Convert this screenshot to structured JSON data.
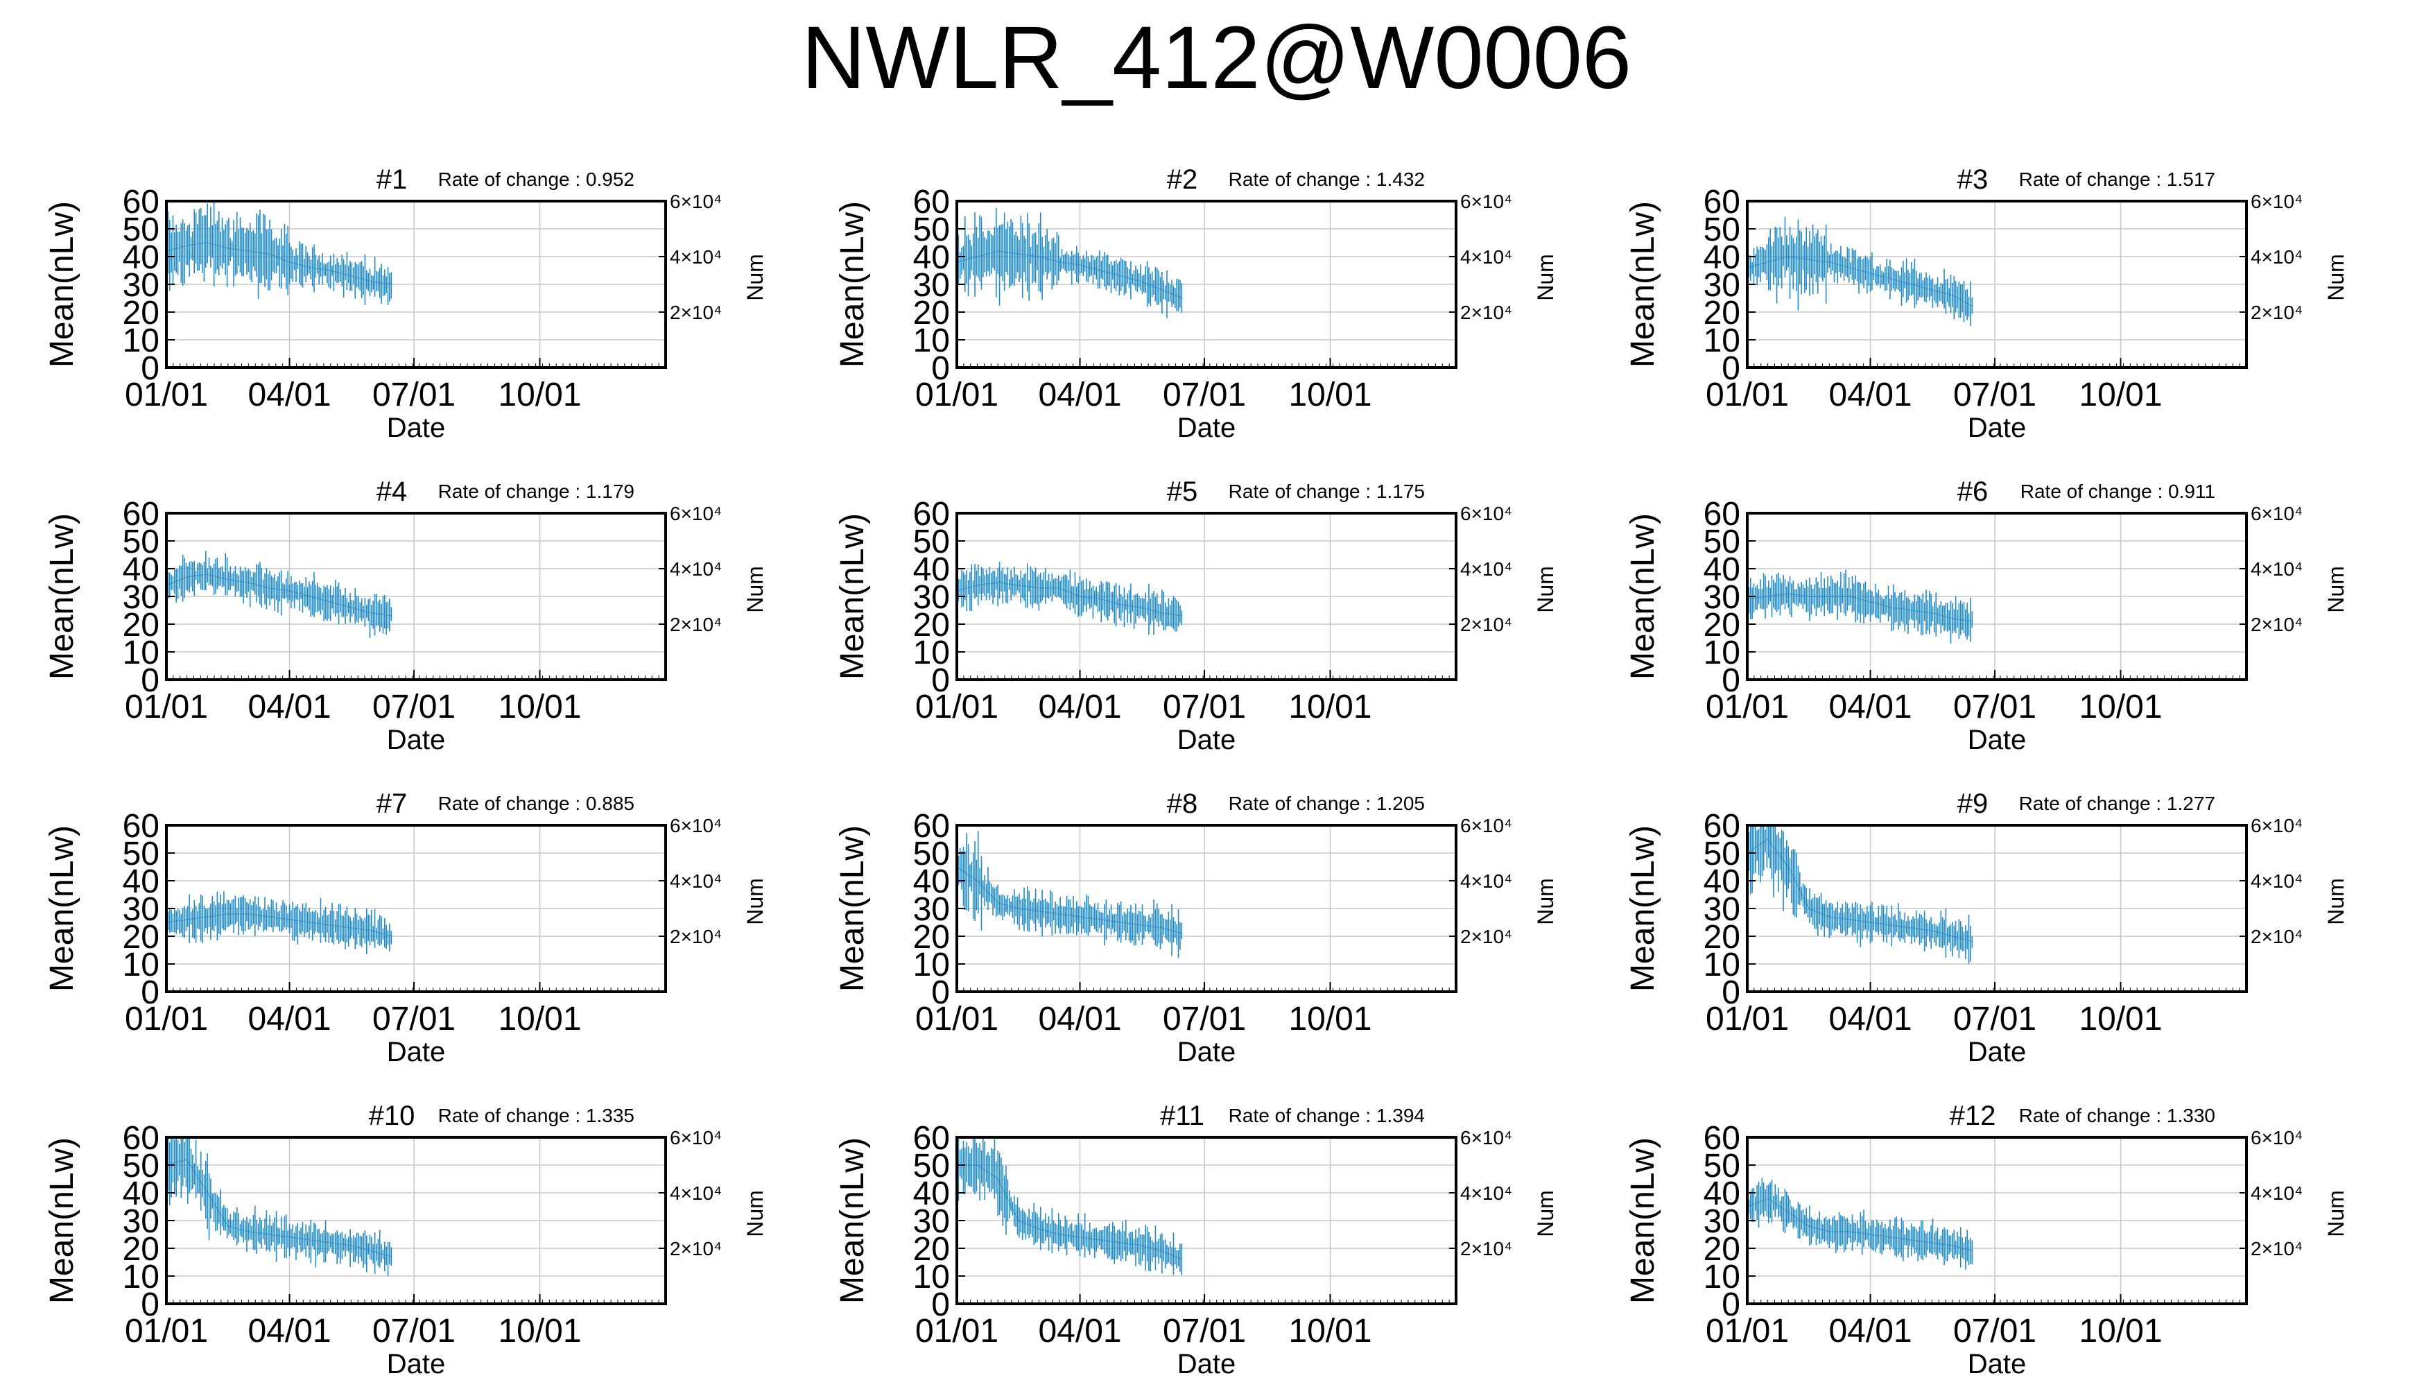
{
  "title": "NWLR_412@W0006",
  "common": {
    "xlabel": "Date",
    "ylabel": "Mean(nLw)",
    "y2label": "Num",
    "x_ticks": [
      "01/01",
      "04/01",
      "07/01",
      "10/01"
    ],
    "y_ticks": [
      0,
      10,
      20,
      30,
      40,
      50,
      60
    ],
    "y2_ticks": [
      {
        "label": "2×10⁴",
        "value": 20000
      },
      {
        "label": "4×10⁴",
        "value": 40000
      },
      {
        "label": "6×10⁴",
        "value": 60000
      }
    ],
    "rate_prefix": "Rate of change : ",
    "series_color": "#1f8ac9"
  },
  "chart_data": [
    {
      "type": "line",
      "title": "#1",
      "rate": "0.952",
      "xlim": [
        0,
        365
      ],
      "ylim": [
        0,
        60
      ],
      "y2lim": [
        0,
        60000
      ],
      "grid": true,
      "series": [
        {
          "x": [
            0,
            15,
            30,
            45,
            60,
            75,
            90,
            105,
            120,
            135,
            150,
            165
          ],
          "y": [
            42,
            44,
            45,
            43,
            42,
            41,
            38,
            36,
            35,
            33,
            31,
            30
          ]
        }
      ]
    },
    {
      "type": "line",
      "title": "#2",
      "rate": "1.432",
      "xlim": [
        0,
        365
      ],
      "ylim": [
        0,
        60
      ],
      "y2lim": [
        0,
        60000
      ],
      "grid": true,
      "series": [
        {
          "x": [
            0,
            15,
            30,
            45,
            60,
            75,
            90,
            105,
            120,
            135,
            150,
            165
          ],
          "y": [
            38,
            40,
            42,
            41,
            40,
            38,
            37,
            35,
            33,
            31,
            28,
            25
          ]
        }
      ]
    },
    {
      "type": "line",
      "title": "#3",
      "rate": "1.517",
      "xlim": [
        0,
        365
      ],
      "ylim": [
        0,
        60
      ],
      "y2lim": [
        0,
        60000
      ],
      "grid": true,
      "series": [
        {
          "x": [
            0,
            15,
            30,
            45,
            60,
            75,
            90,
            105,
            120,
            135,
            150,
            165
          ],
          "y": [
            36,
            38,
            40,
            39,
            38,
            36,
            34,
            32,
            30,
            28,
            26,
            22
          ]
        }
      ]
    },
    {
      "type": "line",
      "title": "#4",
      "rate": "1.179",
      "xlim": [
        0,
        365
      ],
      "ylim": [
        0,
        60
      ],
      "y2lim": [
        0,
        60000
      ],
      "grid": true,
      "series": [
        {
          "x": [
            0,
            15,
            30,
            45,
            60,
            75,
            90,
            105,
            120,
            135,
            150,
            165
          ],
          "y": [
            34,
            37,
            38,
            36,
            35,
            33,
            32,
            30,
            28,
            26,
            24,
            23
          ]
        }
      ]
    },
    {
      "type": "line",
      "title": "#5",
      "rate": "1.175",
      "xlim": [
        0,
        365
      ],
      "ylim": [
        0,
        60
      ],
      "y2lim": [
        0,
        60000
      ],
      "grid": true,
      "series": [
        {
          "x": [
            0,
            15,
            30,
            45,
            60,
            75,
            90,
            105,
            120,
            135,
            150,
            165
          ],
          "y": [
            32,
            34,
            35,
            34,
            33,
            33,
            30,
            29,
            27,
            26,
            24,
            23
          ]
        }
      ]
    },
    {
      "type": "line",
      "title": "#6",
      "rate": "0.911",
      "xlim": [
        0,
        365
      ],
      "ylim": [
        0,
        60
      ],
      "y2lim": [
        0,
        60000
      ],
      "grid": true,
      "series": [
        {
          "x": [
            0,
            15,
            30,
            45,
            60,
            75,
            90,
            105,
            120,
            135,
            150,
            165
          ],
          "y": [
            29,
            30,
            31,
            30,
            30,
            30,
            28,
            26,
            25,
            24,
            22,
            21
          ]
        }
      ]
    },
    {
      "type": "line",
      "title": "#7",
      "rate": "0.885",
      "xlim": [
        0,
        365
      ],
      "ylim": [
        0,
        60
      ],
      "y2lim": [
        0,
        60000
      ],
      "grid": true,
      "series": [
        {
          "x": [
            0,
            15,
            30,
            45,
            60,
            75,
            90,
            105,
            120,
            135,
            150,
            165
          ],
          "y": [
            25,
            26,
            27,
            28,
            28,
            27,
            26,
            25,
            24,
            23,
            22,
            20
          ]
        }
      ]
    },
    {
      "type": "line",
      "title": "#8",
      "rate": "1.205",
      "xlim": [
        0,
        365
      ],
      "ylim": [
        0,
        60
      ],
      "y2lim": [
        0,
        60000
      ],
      "grid": true,
      "series": [
        {
          "x": [
            0,
            15,
            30,
            45,
            60,
            75,
            90,
            105,
            120,
            135,
            150,
            165
          ],
          "y": [
            45,
            40,
            32,
            30,
            29,
            28,
            27,
            26,
            25,
            24,
            23,
            21
          ]
        }
      ]
    },
    {
      "type": "line",
      "title": "#9",
      "rate": "1.277",
      "xlim": [
        0,
        365
      ],
      "ylim": [
        0,
        60
      ],
      "y2lim": [
        0,
        60000
      ],
      "grid": true,
      "series": [
        {
          "x": [
            0,
            15,
            30,
            45,
            60,
            75,
            90,
            105,
            120,
            135,
            150,
            165
          ],
          "y": [
            50,
            55,
            45,
            30,
            27,
            26,
            25,
            24,
            23,
            22,
            20,
            18
          ]
        }
      ]
    },
    {
      "type": "line",
      "title": "#10",
      "rate": "1.335",
      "xlim": [
        0,
        365
      ],
      "ylim": [
        0,
        60
      ],
      "y2lim": [
        0,
        60000
      ],
      "grid": true,
      "series": [
        {
          "x": [
            0,
            15,
            30,
            45,
            60,
            75,
            90,
            105,
            120,
            135,
            150,
            165
          ],
          "y": [
            50,
            52,
            40,
            28,
            26,
            25,
            24,
            23,
            22,
            21,
            19,
            17
          ]
        }
      ]
    },
    {
      "type": "line",
      "title": "#11",
      "rate": "1.394",
      "xlim": [
        0,
        365
      ],
      "ylim": [
        0,
        60
      ],
      "y2lim": [
        0,
        60000
      ],
      "grid": true,
      "series": [
        {
          "x": [
            0,
            15,
            30,
            45,
            60,
            75,
            90,
            105,
            120,
            135,
            150,
            165
          ],
          "y": [
            50,
            50,
            45,
            30,
            27,
            25,
            24,
            23,
            22,
            21,
            19,
            16
          ]
        }
      ]
    },
    {
      "type": "line",
      "title": "#12",
      "rate": "1.330",
      "xlim": [
        0,
        365
      ],
      "ylim": [
        0,
        60
      ],
      "y2lim": [
        0,
        60000
      ],
      "grid": true,
      "series": [
        {
          "x": [
            0,
            15,
            30,
            45,
            60,
            75,
            90,
            105,
            120,
            135,
            150,
            165
          ],
          "y": [
            35,
            38,
            33,
            28,
            26,
            26,
            25,
            24,
            23,
            22,
            21,
            19
          ]
        }
      ]
    }
  ]
}
